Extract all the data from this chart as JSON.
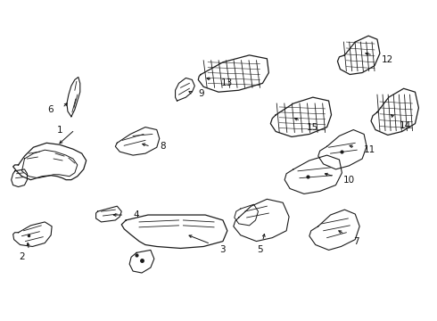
{
  "background_color": "#ffffff",
  "fig_width": 4.9,
  "fig_height": 3.6,
  "dpi": 100,
  "line_color": "#1a1a1a",
  "text_color": "#111111",
  "font_size": 7.5,
  "arrow_color": "#111111"
}
